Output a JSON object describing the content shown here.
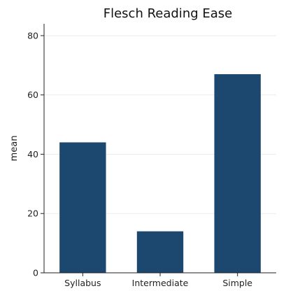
{
  "chart_data": {
    "type": "bar",
    "title": "Flesch Reading Ease",
    "xlabel": "",
    "ylabel": "mean",
    "categories": [
      "Syllabus",
      "Intermediate",
      "Simple"
    ],
    "values": [
      44,
      14,
      67
    ],
    "ylim": [
      0,
      84
    ],
    "yticks": [
      0,
      20,
      40,
      60,
      80
    ],
    "grid": true,
    "bar_color": "#1c4870"
  }
}
